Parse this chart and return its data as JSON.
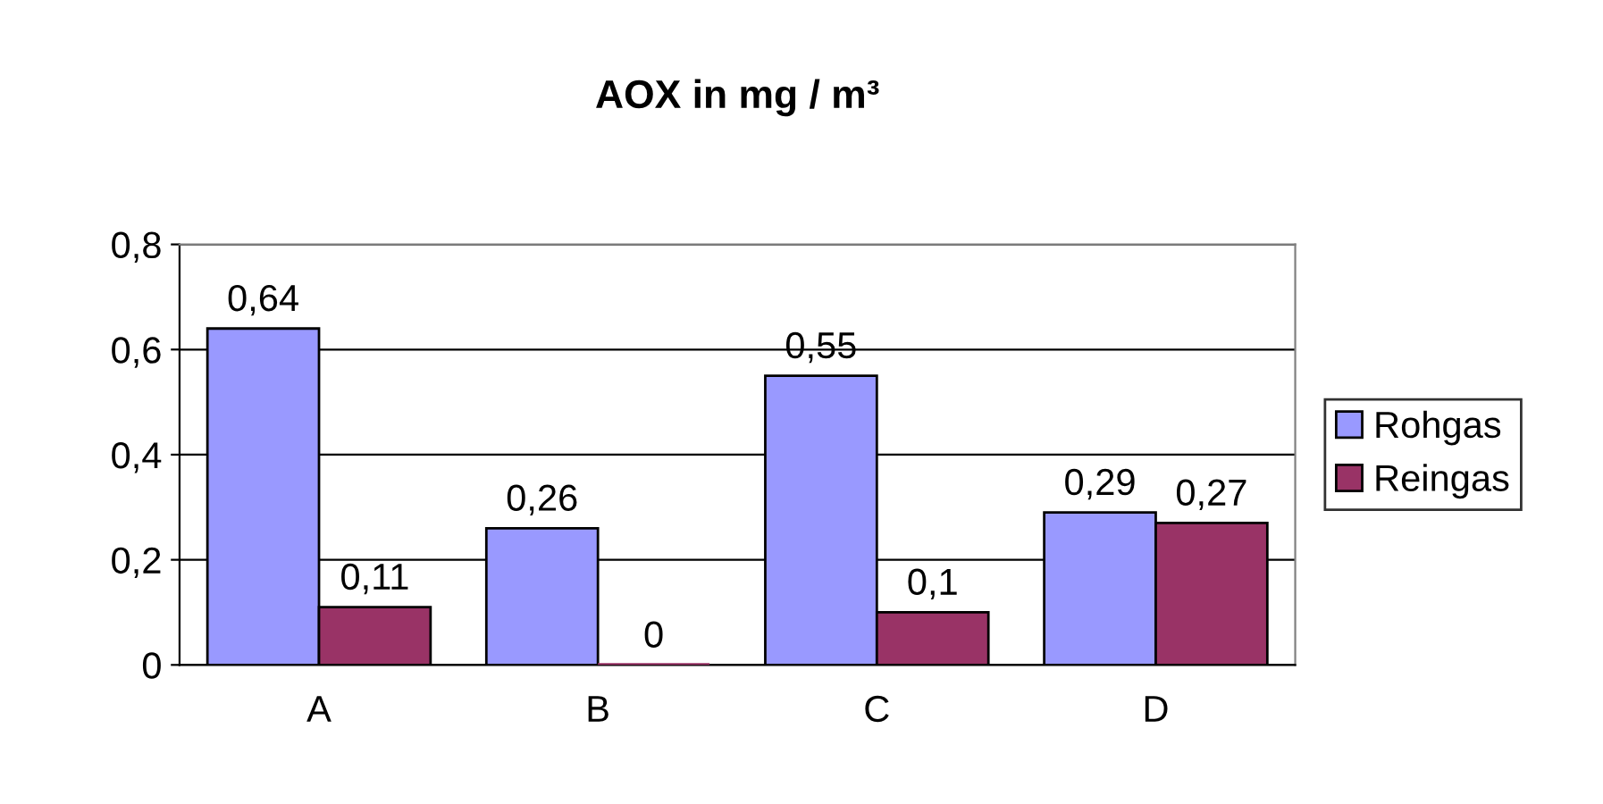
{
  "chart_data": {
    "type": "bar",
    "title": "AOX in mg / m³",
    "categories": [
      "A",
      "B",
      "C",
      "D"
    ],
    "series": [
      {
        "name": "Rohgas",
        "color": "#9999ff",
        "values": [
          0.64,
          0.26,
          0.55,
          0.29
        ],
        "value_labels": [
          "0,64",
          "0,26",
          "0,55",
          "0,29"
        ]
      },
      {
        "name": "Reingas",
        "color": "#993366",
        "values": [
          0.11,
          0,
          0.1,
          0.27
        ],
        "value_labels": [
          "0,11",
          "0",
          "0,1",
          "0,27"
        ]
      }
    ],
    "ylim": [
      0,
      0.8
    ],
    "yticks": [
      {
        "value": 0,
        "label": "0"
      },
      {
        "value": 0.2,
        "label": "0,2"
      },
      {
        "value": 0.4,
        "label": "0,4"
      },
      {
        "value": 0.6,
        "label": "0,6"
      },
      {
        "value": 0.8,
        "label": "0,8"
      }
    ],
    "grid": "y",
    "legend": "right"
  }
}
